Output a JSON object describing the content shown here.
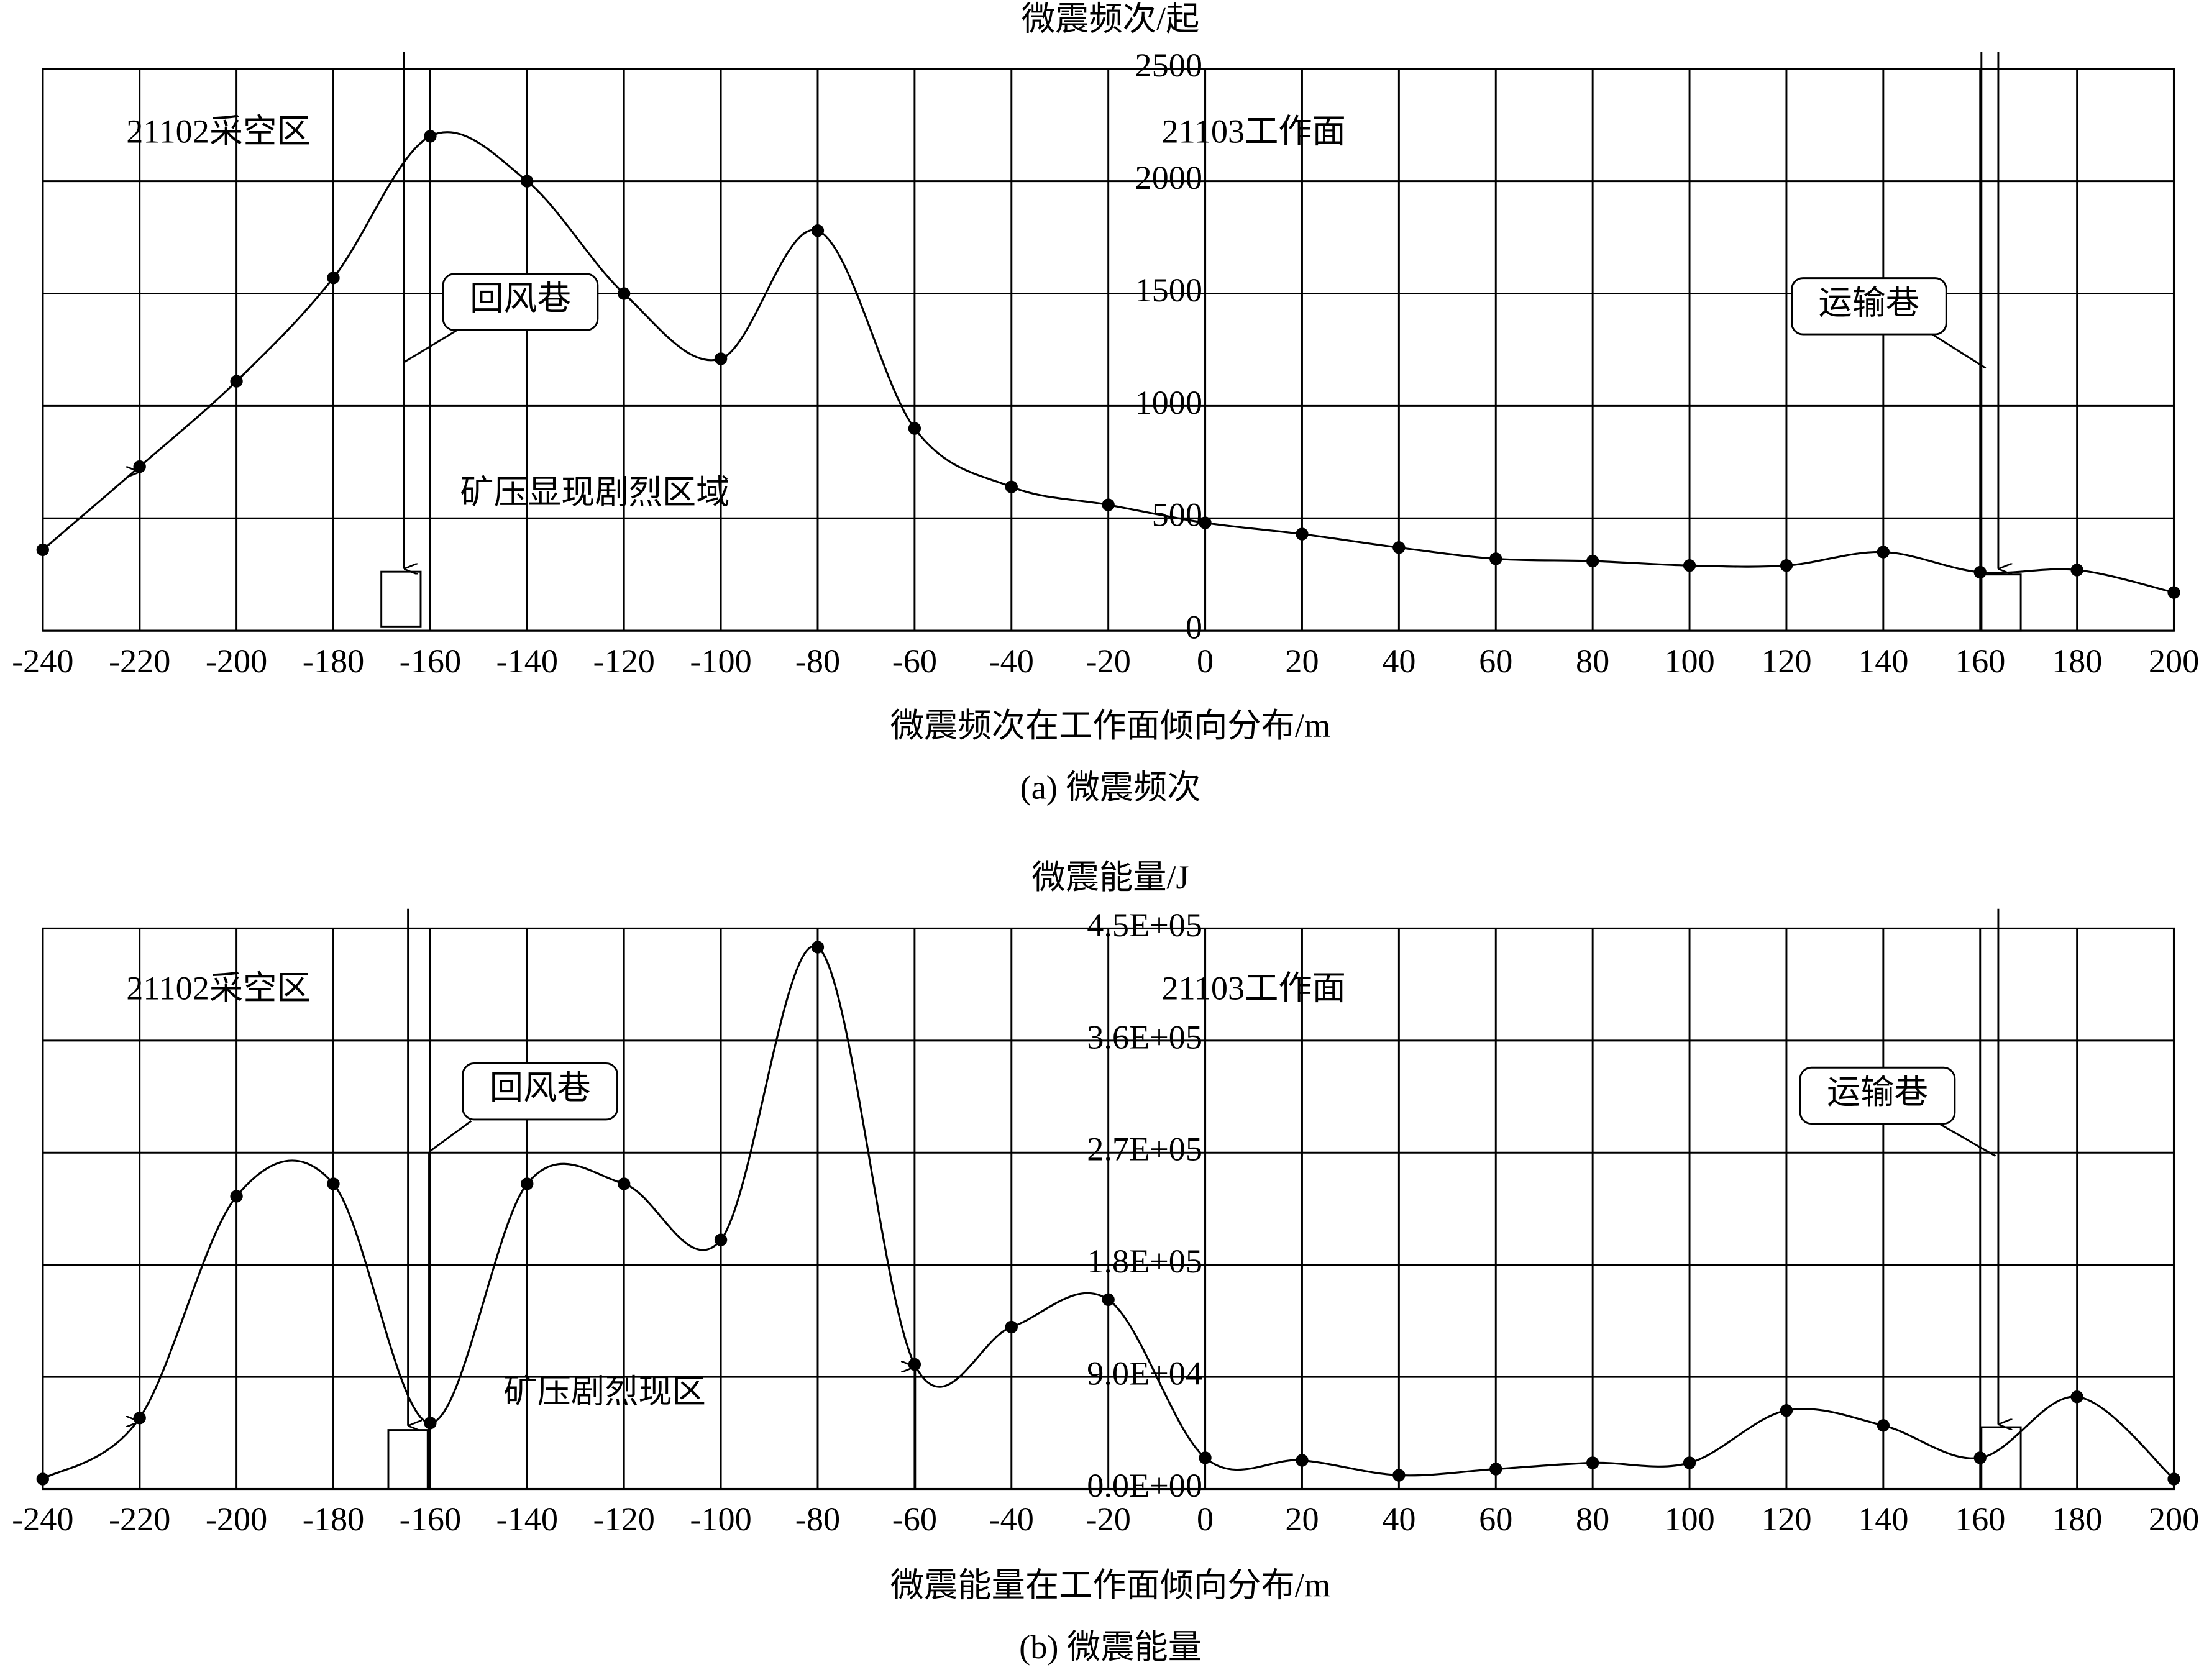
{
  "chart_data": [
    {
      "type": "line",
      "y_label": "微震频次/起",
      "x_label": "微震频次在工作面倾向分布/m",
      "caption": "(a) 微震频次",
      "x": [
        -240,
        -220,
        -200,
        -180,
        -160,
        -140,
        -120,
        -100,
        -80,
        -60,
        -40,
        -20,
        0,
        20,
        40,
        60,
        80,
        100,
        120,
        140,
        160,
        180,
        200
      ],
      "values": [
        360,
        730,
        1110,
        1570,
        2200,
        2000,
        1500,
        1210,
        1780,
        900,
        640,
        560,
        480,
        430,
        370,
        320,
        310,
        290,
        290,
        350,
        260,
        270,
        170
      ],
      "color": "#000000",
      "smooth": true,
      "grid": true,
      "xlim": [
        -240,
        200
      ],
      "xticks": [
        -240,
        -220,
        -200,
        -180,
        -160,
        -140,
        -120,
        -100,
        -80,
        -60,
        -40,
        -20,
        0,
        20,
        40,
        60,
        80,
        100,
        120,
        140,
        160,
        180,
        200
      ],
      "ylim": [
        0,
        2500
      ],
      "yticks": [
        0,
        500,
        1000,
        1500,
        2000,
        2500
      ],
      "annotations": [
        "21102采空区",
        "21103工作面",
        "回风巷",
        "运输巷",
        "矿压显现剧烈区域"
      ]
    },
    {
      "type": "line",
      "y_label": "微震能量/J",
      "x_label": "微震能量在工作面倾向分布/m",
      "caption": "(b) 微震能量",
      "x": [
        -240,
        -220,
        -200,
        -180,
        -160,
        -140,
        -120,
        -100,
        -80,
        -60,
        -40,
        -20,
        0,
        20,
        40,
        60,
        80,
        100,
        120,
        140,
        160,
        180,
        200
      ],
      "values": [
        8000,
        57000,
        235000,
        245000,
        53000,
        245000,
        245000,
        200000,
        435000,
        100000,
        130000,
        152000,
        25000,
        23000,
        11000,
        16000,
        21000,
        21000,
        63000,
        51000,
        25000,
        74000,
        8000
      ],
      "color": "#000000",
      "smooth": true,
      "grid": true,
      "xlim": [
        -240,
        200
      ],
      "xticks": [
        -240,
        -220,
        -200,
        -180,
        -160,
        -140,
        -120,
        -100,
        -80,
        -60,
        -40,
        -20,
        0,
        20,
        40,
        60,
        80,
        100,
        120,
        140,
        160,
        180,
        200
      ],
      "ylim": [
        0,
        450000
      ],
      "yticks": [
        {
          "value": 0,
          "label": "0.0E+00"
        },
        {
          "value": 90000,
          "label": "9.0E+04"
        },
        {
          "value": 180000,
          "label": "1.8E+05"
        },
        {
          "value": 270000,
          "label": "2.7E+05"
        },
        {
          "value": 360000,
          "label": "3.6E+05"
        },
        {
          "value": 450000,
          "label": "4.5E+05"
        }
      ],
      "annotations": [
        "21102采空区",
        "21103工作面",
        "回风巷",
        "运输巷",
        "矿压剧烈现区"
      ]
    }
  ]
}
